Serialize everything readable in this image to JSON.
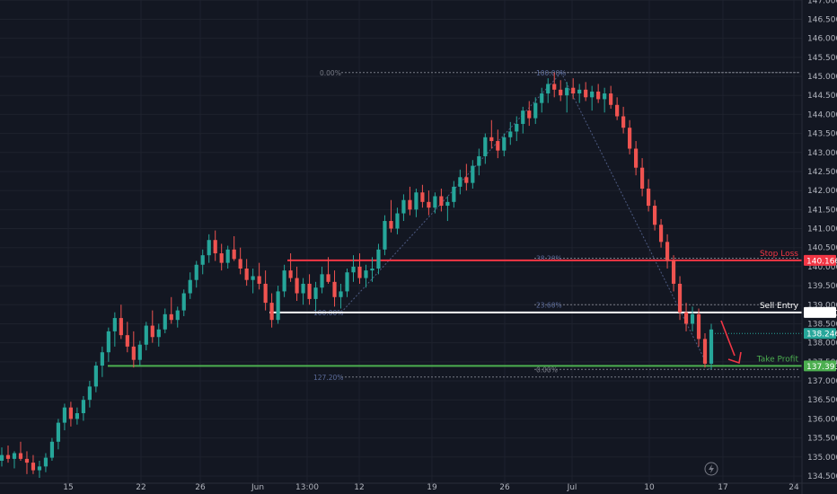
{
  "chart_data": {
    "type": "candlestick",
    "colors": {
      "background": "#131722",
      "grid": "#1e222d",
      "up": "#26a69a",
      "down": "#ef5350",
      "stop_loss": "#f23645",
      "sell_entry": "#ffffff",
      "take_profit": "#4caf50",
      "fib": "#787b86",
      "fib_blue": "#2962ff",
      "arrow": "#f23645"
    },
    "y_ticks": [
      134.5,
      135.0,
      135.5,
      136.0,
      136.5,
      137.0,
      137.5,
      138.0,
      138.5,
      139.0,
      139.5,
      140.0,
      140.5,
      141.0,
      141.5,
      142.0,
      142.5,
      143.0,
      143.5,
      144.0,
      144.5,
      145.0,
      145.5,
      146.0,
      146.5,
      147.0
    ],
    "y_tick_labels": [
      "134.500",
      "135.000",
      "135.500",
      "136.000",
      "136.500",
      "137.000",
      "137.500",
      "138.000",
      "138.500",
      "139.000",
      "139.500",
      "140.000",
      "140.500",
      "141.000",
      "141.500",
      "142.000",
      "142.500",
      "143.000",
      "143.500",
      "144.000",
      "144.500",
      "145.000",
      "145.500",
      "146.000",
      "146.500",
      "147.000"
    ],
    "x_tick_labels": [
      "15",
      "22",
      "26",
      "Jun",
      "13:00",
      "12",
      "19",
      "26",
      "Jul",
      "10",
      "17",
      "24"
    ],
    "levels": [
      {
        "name": "Stop Loss",
        "value": "140.166",
        "price": 140.166,
        "color": "#f23645"
      },
      {
        "name": "Sell Entry",
        "value": "138.797",
        "price": 138.797,
        "color": "#ffffff"
      },
      {
        "name": "Take Profit",
        "value": "137.393",
        "price": 137.393,
        "color": "#4caf50"
      }
    ],
    "current_price": {
      "value": "138.246",
      "price": 138.246,
      "color": "#26a69a"
    },
    "fib_lower": [
      {
        "label": "100.00%",
        "price": 138.797
      },
      {
        "label": "127.20%",
        "price": 137.1
      }
    ],
    "fib_upper": [
      {
        "label": "0.00%",
        "price": 145.1
      },
      {
        "label": "100.00%",
        "price": 145.1
      },
      {
        "label": "38.20%",
        "price": 140.22
      },
      {
        "label": "23.60%",
        "price": 139.0
      },
      {
        "label": "0.00%",
        "price": 137.3
      }
    ],
    "ohlc": [
      [
        134.9,
        135.25,
        134.75,
        135.05
      ],
      [
        135.05,
        135.3,
        134.85,
        134.95
      ],
      [
        134.95,
        135.15,
        134.7,
        135.1
      ],
      [
        135.1,
        135.4,
        134.9,
        134.95
      ],
      [
        134.95,
        135.15,
        134.55,
        134.85
      ],
      [
        134.85,
        135.05,
        134.55,
        134.65
      ],
      [
        134.65,
        134.9,
        134.45,
        134.75
      ],
      [
        134.75,
        135.1,
        134.6,
        134.98
      ],
      [
        134.98,
        135.5,
        134.9,
        135.4
      ],
      [
        135.4,
        136.0,
        135.2,
        135.9
      ],
      [
        135.9,
        136.4,
        135.7,
        136.3
      ],
      [
        136.3,
        136.45,
        135.8,
        136.0
      ],
      [
        136.0,
        136.3,
        135.85,
        136.15
      ],
      [
        136.15,
        136.6,
        135.95,
        136.5
      ],
      [
        136.5,
        137.0,
        136.3,
        136.85
      ],
      [
        136.85,
        137.5,
        136.7,
        137.4
      ],
      [
        137.4,
        137.9,
        137.1,
        137.75
      ],
      [
        137.75,
        138.4,
        137.5,
        138.3
      ],
      [
        138.3,
        138.8,
        137.9,
        138.65
      ],
      [
        138.65,
        139.0,
        138.1,
        138.2
      ],
      [
        138.2,
        138.55,
        137.75,
        137.9
      ],
      [
        137.9,
        138.3,
        137.35,
        137.55
      ],
      [
        137.55,
        138.05,
        137.4,
        137.95
      ],
      [
        137.95,
        138.55,
        137.8,
        138.45
      ],
      [
        138.45,
        138.85,
        138.0,
        138.15
      ],
      [
        138.15,
        138.5,
        137.9,
        138.35
      ],
      [
        138.35,
        138.9,
        138.25,
        138.75
      ],
      [
        138.75,
        139.2,
        138.5,
        138.6
      ],
      [
        138.6,
        138.95,
        138.4,
        138.85
      ],
      [
        138.85,
        139.4,
        138.7,
        139.3
      ],
      [
        139.3,
        139.85,
        139.15,
        139.65
      ],
      [
        139.65,
        140.15,
        139.45,
        140.05
      ],
      [
        140.05,
        140.45,
        139.8,
        140.3
      ],
      [
        140.3,
        140.85,
        140.1,
        140.7
      ],
      [
        140.7,
        140.95,
        140.15,
        140.35
      ],
      [
        140.35,
        140.6,
        139.9,
        140.1
      ],
      [
        140.1,
        140.55,
        139.95,
        140.45
      ],
      [
        140.45,
        140.8,
        140.15,
        140.2
      ],
      [
        140.2,
        140.5,
        139.8,
        139.95
      ],
      [
        139.95,
        140.2,
        139.5,
        139.65
      ],
      [
        139.65,
        139.95,
        139.3,
        139.75
      ],
      [
        139.75,
        140.1,
        139.4,
        139.55
      ],
      [
        139.55,
        139.9,
        138.85,
        139.05
      ],
      [
        139.05,
        139.3,
        138.4,
        138.6
      ],
      [
        138.6,
        139.5,
        138.5,
        139.35
      ],
      [
        139.35,
        140.05,
        139.2,
        139.9
      ],
      [
        139.9,
        140.35,
        139.6,
        139.7
      ],
      [
        139.7,
        140.0,
        139.1,
        139.3
      ],
      [
        139.3,
        139.7,
        139.0,
        139.55
      ],
      [
        139.55,
        139.8,
        139.0,
        139.15
      ],
      [
        139.15,
        139.6,
        138.85,
        139.45
      ],
      [
        139.45,
        140.0,
        139.3,
        139.8
      ],
      [
        139.8,
        140.25,
        139.55,
        139.6
      ],
      [
        139.6,
        139.9,
        138.95,
        139.2
      ],
      [
        139.2,
        139.55,
        138.9,
        139.35
      ],
      [
        139.35,
        139.95,
        139.2,
        139.85
      ],
      [
        139.85,
        140.3,
        139.6,
        140.0
      ],
      [
        140.0,
        140.35,
        139.55,
        139.7
      ],
      [
        139.7,
        140.05,
        139.45,
        139.9
      ],
      [
        139.9,
        140.25,
        139.6,
        139.95
      ],
      [
        139.95,
        140.6,
        139.8,
        140.45
      ],
      [
        140.45,
        141.35,
        140.3,
        141.2
      ],
      [
        141.2,
        141.75,
        140.9,
        141.0
      ],
      [
        141.0,
        141.55,
        140.85,
        141.4
      ],
      [
        141.4,
        141.9,
        141.2,
        141.75
      ],
      [
        141.75,
        142.1,
        141.35,
        141.5
      ],
      [
        141.5,
        142.05,
        141.3,
        141.95
      ],
      [
        141.95,
        142.15,
        141.55,
        141.7
      ],
      [
        141.7,
        142.0,
        141.35,
        141.55
      ],
      [
        141.55,
        141.95,
        141.4,
        141.85
      ],
      [
        141.85,
        142.05,
        141.45,
        141.6
      ],
      [
        141.6,
        141.85,
        141.2,
        141.7
      ],
      [
        141.7,
        142.25,
        141.55,
        142.1
      ],
      [
        142.1,
        142.55,
        141.9,
        142.35
      ],
      [
        142.35,
        142.7,
        142.0,
        142.2
      ],
      [
        142.2,
        142.8,
        142.05,
        142.65
      ],
      [
        142.65,
        143.1,
        142.4,
        142.9
      ],
      [
        142.9,
        143.5,
        142.7,
        143.4
      ],
      [
        143.4,
        143.85,
        143.1,
        143.3
      ],
      [
        143.3,
        143.6,
        142.85,
        143.05
      ],
      [
        143.05,
        143.5,
        142.9,
        143.4
      ],
      [
        143.4,
        143.8,
        143.2,
        143.55
      ],
      [
        143.55,
        143.95,
        143.3,
        143.75
      ],
      [
        143.75,
        144.2,
        143.5,
        144.1
      ],
      [
        144.1,
        144.35,
        143.7,
        143.9
      ],
      [
        143.9,
        144.45,
        143.75,
        144.3
      ],
      [
        144.3,
        144.7,
        144.05,
        144.55
      ],
      [
        144.55,
        144.95,
        144.3,
        144.8
      ],
      [
        144.8,
        145.1,
        144.45,
        144.65
      ],
      [
        144.65,
        144.9,
        144.35,
        144.5
      ],
      [
        144.5,
        144.85,
        144.05,
        144.7
      ],
      [
        144.7,
        144.95,
        144.4,
        144.55
      ],
      [
        144.55,
        144.8,
        144.3,
        144.65
      ],
      [
        144.65,
        144.85,
        144.35,
        144.45
      ],
      [
        144.45,
        144.75,
        144.1,
        144.6
      ],
      [
        144.6,
        144.8,
        144.3,
        144.4
      ],
      [
        144.4,
        144.7,
        144.05,
        144.55
      ],
      [
        144.55,
        144.75,
        144.15,
        144.25
      ],
      [
        144.25,
        144.45,
        143.85,
        143.95
      ],
      [
        143.95,
        144.2,
        143.5,
        143.65
      ],
      [
        143.65,
        143.85,
        142.95,
        143.1
      ],
      [
        143.1,
        143.3,
        142.4,
        142.6
      ],
      [
        142.6,
        142.85,
        141.85,
        142.05
      ],
      [
        142.05,
        142.3,
        141.45,
        141.6
      ],
      [
        141.6,
        141.75,
        140.95,
        141.1
      ],
      [
        141.1,
        141.25,
        140.5,
        140.65
      ],
      [
        140.65,
        140.85,
        139.95,
        140.15
      ],
      [
        140.15,
        140.3,
        139.35,
        139.55
      ],
      [
        139.55,
        139.75,
        138.6,
        138.8
      ],
      [
        138.8,
        139.05,
        138.3,
        138.5
      ],
      [
        138.5,
        138.95,
        138.3,
        138.75
      ],
      [
        138.75,
        138.9,
        137.9,
        138.1
      ],
      [
        138.1,
        138.25,
        137.35,
        137.45
      ],
      [
        137.45,
        138.5,
        137.3,
        138.35
      ]
    ]
  },
  "annotations": {
    "y_axis_top_cut": "147.000",
    "y_axis_bottom_cut": "134.500",
    "x_axis_extra": "Jul"
  }
}
